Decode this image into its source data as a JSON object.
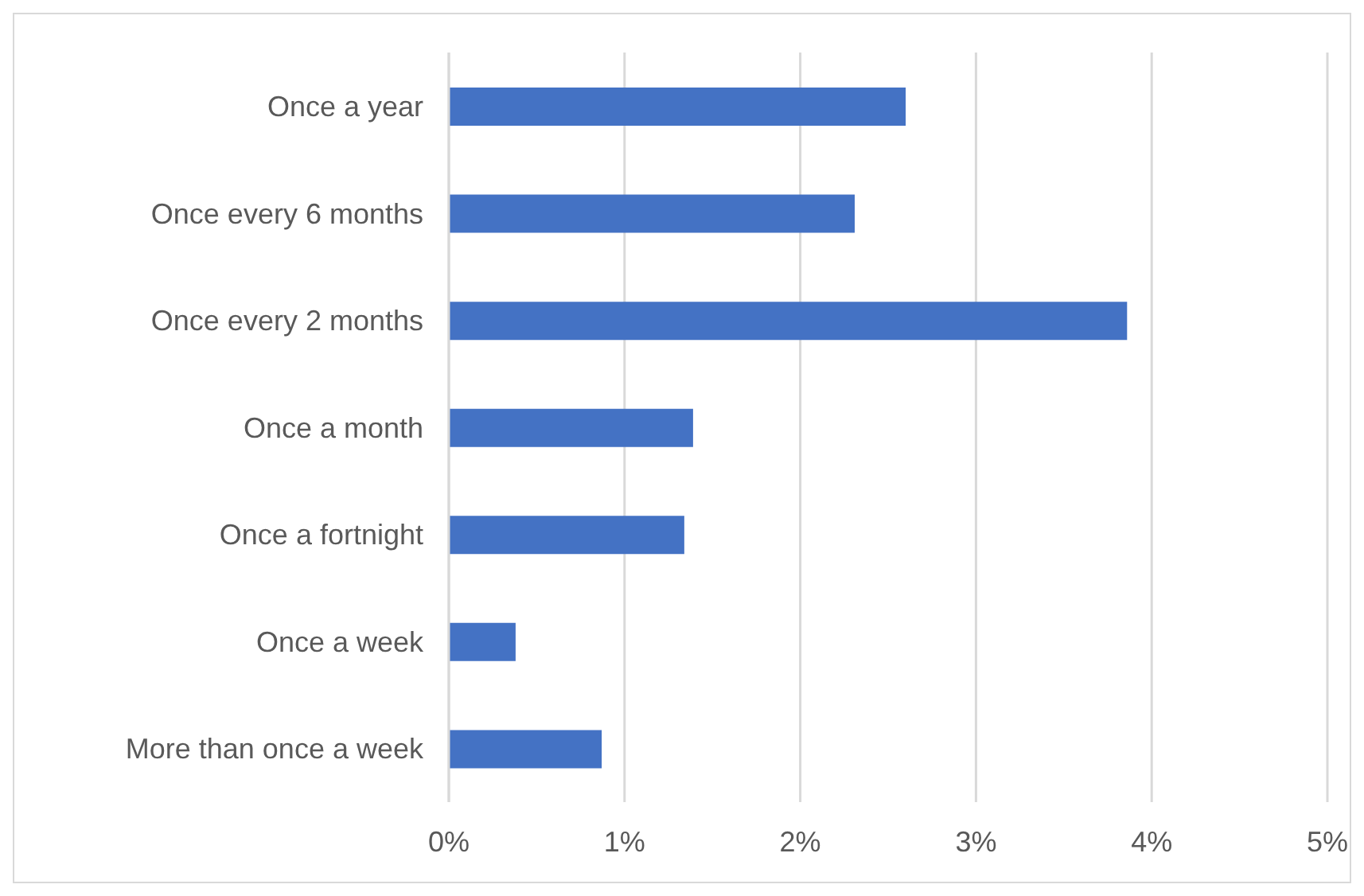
{
  "chart_data": {
    "type": "bar",
    "orientation": "horizontal",
    "categories": [
      "Once a year",
      "Once every 6 months",
      "Once every 2 months",
      "Once a month",
      "Once a fortnight",
      "Once a week",
      "More than once a week"
    ],
    "values": [
      2.6,
      2.31,
      3.86,
      1.39,
      1.34,
      0.38,
      0.87
    ],
    "color": "#4472c4",
    "xlim": [
      0,
      5
    ],
    "xticks": [
      {
        "value": 0,
        "label": "0%"
      },
      {
        "value": 1,
        "label": "1%"
      },
      {
        "value": 2,
        "label": "2%"
      },
      {
        "value": 3,
        "label": "3%"
      },
      {
        "value": 4,
        "label": "4%"
      },
      {
        "value": 5,
        "label": "5%"
      }
    ],
    "grid": "x"
  }
}
